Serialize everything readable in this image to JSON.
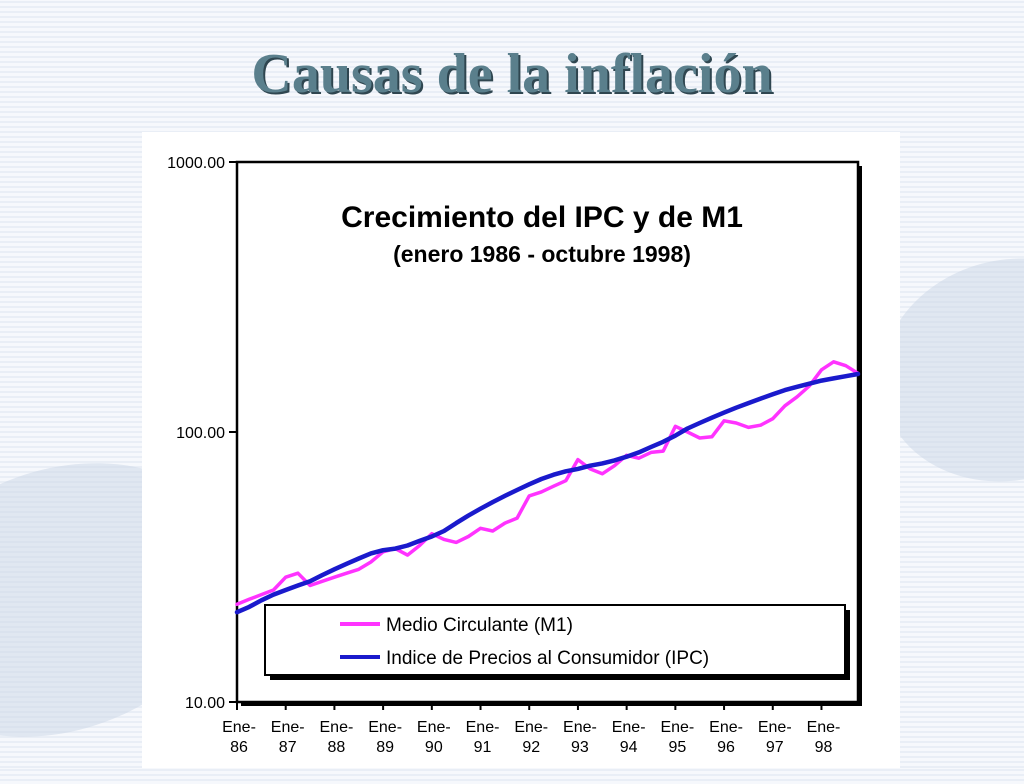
{
  "slide": {
    "title": "Causas de la inflación"
  },
  "chart_data": {
    "type": "line",
    "title": "Crecimiento del IPC y de M1",
    "subtitle": "(enero 1986 - octubre 1998)",
    "xlabel": "",
    "ylabel": "",
    "y_scale": "log",
    "ylim": [
      10,
      1000
    ],
    "y_ticks": [
      "10.00",
      "100.00",
      "1000.00"
    ],
    "xlim": [
      1986.0,
      1998.75
    ],
    "x_ticks": [
      {
        "top": "Ene-",
        "bottom": "86"
      },
      {
        "top": "Ene-",
        "bottom": "87"
      },
      {
        "top": "Ene-",
        "bottom": "88"
      },
      {
        "top": "Ene-",
        "bottom": "89"
      },
      {
        "top": "Ene-",
        "bottom": "90"
      },
      {
        "top": "Ene-",
        "bottom": "91"
      },
      {
        "top": "Ene-",
        "bottom": "92"
      },
      {
        "top": "Ene-",
        "bottom": "93"
      },
      {
        "top": "Ene-",
        "bottom": "94"
      },
      {
        "top": "Ene-",
        "bottom": "95"
      },
      {
        "top": "Ene-",
        "bottom": "96"
      },
      {
        "top": "Ene-",
        "bottom": "97"
      },
      {
        "top": "Ene-",
        "bottom": "98"
      }
    ],
    "grid": false,
    "legend_position": "bottom",
    "series": [
      {
        "name": "Medio Circulante (M1)",
        "color": "#ff33ff",
        "x": [
          1986.0,
          1986.25,
          1986.5,
          1986.75,
          1987.0,
          1987.25,
          1987.5,
          1987.75,
          1988.0,
          1988.25,
          1988.5,
          1988.75,
          1989.0,
          1989.25,
          1989.5,
          1989.75,
          1990.0,
          1990.25,
          1990.5,
          1990.75,
          1991.0,
          1991.25,
          1991.5,
          1991.75,
          1992.0,
          1992.25,
          1992.5,
          1992.75,
          1993.0,
          1993.25,
          1993.5,
          1993.75,
          1994.0,
          1994.25,
          1994.5,
          1994.75,
          1995.0,
          1995.25,
          1995.5,
          1995.75,
          1996.0,
          1996.25,
          1996.5,
          1996.75,
          1997.0,
          1997.25,
          1997.5,
          1997.75,
          1998.0,
          1998.25,
          1998.5,
          1998.75
        ],
        "values": [
          23,
          24,
          25,
          26,
          29,
          30,
          27,
          28,
          29,
          30,
          31,
          33,
          36,
          37,
          35,
          38,
          42,
          40,
          39,
          41,
          44,
          43,
          46,
          48,
          58,
          60,
          63,
          66,
          79,
          73,
          70,
          75,
          82,
          80,
          84,
          85,
          105,
          100,
          95,
          96,
          110,
          108,
          104,
          106,
          112,
          125,
          135,
          148,
          170,
          182,
          176,
          165
        ],
        "visible_label": "Medio Circulante (M1)"
      },
      {
        "name": "Indice de Precios al Consumidor (IPC)",
        "color": "#1a1acc",
        "x": [
          1986.0,
          1986.25,
          1986.5,
          1986.75,
          1987.0,
          1987.25,
          1987.5,
          1987.75,
          1988.0,
          1988.25,
          1988.5,
          1988.75,
          1989.0,
          1989.25,
          1989.5,
          1989.75,
          1990.0,
          1990.25,
          1990.5,
          1990.75,
          1991.0,
          1991.25,
          1991.5,
          1991.75,
          1992.0,
          1992.25,
          1992.5,
          1992.75,
          1993.0,
          1993.25,
          1993.5,
          1993.75,
          1994.0,
          1994.25,
          1994.5,
          1994.75,
          1995.0,
          1995.25,
          1995.5,
          1995.75,
          1996.0,
          1996.25,
          1996.5,
          1996.75,
          1997.0,
          1997.25,
          1997.5,
          1997.75,
          1998.0,
          1998.25,
          1998.5,
          1998.75
        ],
        "values": [
          21.5,
          22.5,
          23.8,
          25,
          26,
          27,
          28,
          29.5,
          31,
          32.5,
          34,
          35.5,
          36.5,
          37,
          38,
          39.5,
          41,
          43,
          46,
          49,
          52,
          55,
          58,
          61,
          64,
          67,
          69.5,
          71.5,
          73,
          75,
          76.5,
          78.5,
          81,
          84,
          88,
          92,
          97,
          103,
          108,
          113,
          118,
          123,
          128,
          133,
          138,
          143,
          147,
          151,
          155,
          158,
          161,
          164
        ]
      }
    ]
  }
}
